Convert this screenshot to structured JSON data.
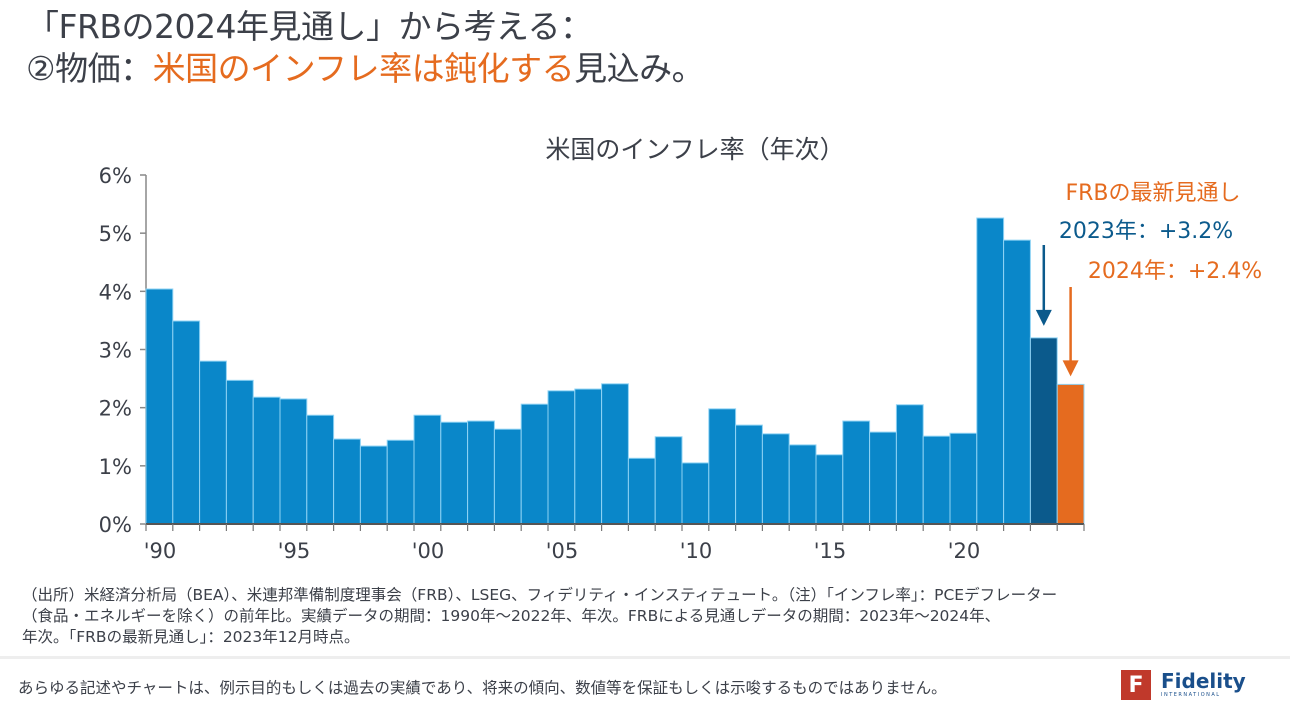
{
  "title": {
    "line1": "「FRBの2024年見通し」から考える：",
    "line2_prefix": "②物価：",
    "line2_accent": "米国のインフレ率は鈍化する",
    "line2_suffix": "見込み。"
  },
  "colors": {
    "actual": "#0a87c9",
    "forecast_2023": "#0b5a8c",
    "forecast_2024": "#e56b1f",
    "accent_text": "#e56b1f",
    "annotation_blue": "#0b5a8c"
  },
  "chart_data": {
    "type": "bar",
    "title": "米国のインフレ率（年次）",
    "xlabel": "",
    "ylabel": "",
    "ylim": [
      0,
      6
    ],
    "yticks": [
      "0%",
      "1%",
      "2%",
      "3%",
      "4%",
      "5%",
      "6%"
    ],
    "xtick_labels": [
      {
        "year": 1990,
        "label": "'90"
      },
      {
        "year": 1995,
        "label": "'95"
      },
      {
        "year": 2000,
        "label": "'00"
      },
      {
        "year": 2005,
        "label": "'05"
      },
      {
        "year": 2010,
        "label": "'10"
      },
      {
        "year": 2015,
        "label": "'15"
      },
      {
        "year": 2020,
        "label": "'20"
      }
    ],
    "grid": false,
    "categories": [
      1990,
      1991,
      1992,
      1993,
      1994,
      1995,
      1996,
      1997,
      1998,
      1999,
      2000,
      2001,
      2002,
      2003,
      2004,
      2005,
      2006,
      2007,
      2008,
      2009,
      2010,
      2011,
      2012,
      2013,
      2014,
      2015,
      2016,
      2017,
      2018,
      2019,
      2020,
      2021,
      2022,
      2023,
      2024
    ],
    "series": [
      {
        "name": "実績",
        "values": [
          4.04,
          3.49,
          2.8,
          2.47,
          2.18,
          2.15,
          1.87,
          1.46,
          1.34,
          1.44,
          1.87,
          1.75,
          1.77,
          1.63,
          2.06,
          2.29,
          2.32,
          2.41,
          1.13,
          1.5,
          1.05,
          1.98,
          1.7,
          1.55,
          1.36,
          1.19,
          1.77,
          1.58,
          2.05,
          1.51,
          1.56,
          5.26,
          4.88,
          null,
          null
        ]
      },
      {
        "name": "FRB見通し2023",
        "values": [
          null,
          null,
          null,
          null,
          null,
          null,
          null,
          null,
          null,
          null,
          null,
          null,
          null,
          null,
          null,
          null,
          null,
          null,
          null,
          null,
          null,
          null,
          null,
          null,
          null,
          null,
          null,
          null,
          null,
          null,
          null,
          null,
          null,
          3.2,
          null
        ]
      },
      {
        "name": "FRB見通し2024",
        "values": [
          null,
          null,
          null,
          null,
          null,
          null,
          null,
          null,
          null,
          null,
          null,
          null,
          null,
          null,
          null,
          null,
          null,
          null,
          null,
          null,
          null,
          null,
          null,
          null,
          null,
          null,
          null,
          null,
          null,
          null,
          null,
          null,
          null,
          null,
          2.4
        ]
      }
    ],
    "annotations": {
      "header": "FRBの最新見通し",
      "y2023": "2023年：+3.2%",
      "y2024": "2024年：+2.4%"
    }
  },
  "notes": {
    "line1": "（出所）米経済分析局（BEA）、米連邦準備制度理事会（FRB）、LSEG、フィデリティ・インスティテュート。（注）「インフレ率」：PCEデフレーター",
    "line2": "（食品・エネルギーを除く）の前年比。実績データの期間：1990年～2022年、年次。FRBによる見通しデータの期間：2023年～2024年、",
    "line3": "年次。「FRBの最新見通し」：2023年12月時点。"
  },
  "disclaimer": "あらゆる記述やチャートは、例示目的もしくは過去の実績であり、将来の傾向、数値等を保証もしくは示唆するものではありません。",
  "logo": {
    "mark": "F",
    "name": "Fidelity",
    "sub": "INTERNATIONAL"
  }
}
